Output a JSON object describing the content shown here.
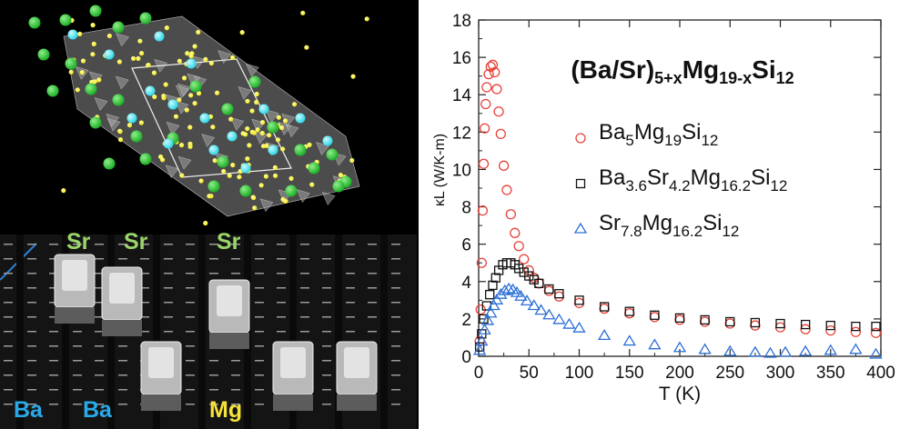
{
  "element_labels": {
    "top": [
      "Sr",
      "Sr",
      "Sr"
    ],
    "bottom": [
      "Ba",
      "Ba",
      "Mg"
    ]
  },
  "colors": {
    "sr_label": "#9ad46a",
    "ba_label": "#2aa9e8",
    "mg_label": "#f5e23a",
    "atom_green": "#1fae28",
    "atom_cyan": "#2fd6e6",
    "atom_yellow": "#f2ea1c",
    "polyhedra": "#8a8a8a",
    "series_ba": "#e8433c",
    "series_basr": "#111111",
    "series_sr": "#2b6fd6"
  },
  "chart_data": {
    "type": "scatter",
    "title": "(Ba/Sr)5+xMg19-xSi12",
    "xlabel": "T (K)",
    "ylabel": "κL (W/K-m)",
    "xlim": [
      0,
      400
    ],
    "ylim": [
      0,
      18
    ],
    "xticks": [
      "0",
      "50",
      "100",
      "150",
      "200",
      "250",
      "300",
      "350",
      "400"
    ],
    "yticks": [
      "0",
      "2",
      "4",
      "6",
      "8",
      "10",
      "12",
      "14",
      "16",
      "18"
    ],
    "series": [
      {
        "name": "Ba5Mg19Si12",
        "marker": "circle",
        "color": "#e8433c",
        "points": [
          [
            1,
            0.8
          ],
          [
            2,
            2.5
          ],
          [
            3,
            5
          ],
          [
            4,
            7.8
          ],
          [
            5,
            10.3
          ],
          [
            6,
            12.2
          ],
          [
            7,
            13.5
          ],
          [
            8,
            14.4
          ],
          [
            10,
            15.1
          ],
          [
            12,
            15.5
          ],
          [
            14,
            15.6
          ],
          [
            16,
            15.2
          ],
          [
            18,
            14.3
          ],
          [
            20,
            13.1
          ],
          [
            22,
            11.9
          ],
          [
            25,
            10.2
          ],
          [
            28,
            8.9
          ],
          [
            32,
            7.6
          ],
          [
            36,
            6.6
          ],
          [
            40,
            5.9
          ],
          [
            45,
            5.2
          ],
          [
            50,
            4.6
          ],
          [
            55,
            4.2
          ],
          [
            60,
            3.9
          ],
          [
            70,
            3.5
          ],
          [
            80,
            3.2
          ],
          [
            100,
            2.85
          ],
          [
            125,
            2.55
          ],
          [
            150,
            2.3
          ],
          [
            175,
            2.1
          ],
          [
            200,
            1.95
          ],
          [
            225,
            1.85
          ],
          [
            250,
            1.75
          ],
          [
            275,
            1.65
          ],
          [
            300,
            1.55
          ],
          [
            325,
            1.45
          ],
          [
            350,
            1.38
          ],
          [
            375,
            1.3
          ],
          [
            395,
            1.25
          ]
        ],
        "legend_parts": [
          [
            "Ba",
            false
          ],
          [
            "5",
            true
          ],
          [
            "Mg",
            false
          ],
          [
            "19",
            true
          ],
          [
            "Si",
            false
          ],
          [
            "12",
            true
          ]
        ]
      },
      {
        "name": "Ba3.6Sr4.2Mg16.2Si12",
        "marker": "square",
        "color": "#111111",
        "points": [
          [
            1,
            0.5
          ],
          [
            3,
            1.2
          ],
          [
            5,
            2.0
          ],
          [
            8,
            2.7
          ],
          [
            11,
            3.3
          ],
          [
            14,
            3.8
          ],
          [
            17,
            4.2
          ],
          [
            20,
            4.6
          ],
          [
            24,
            4.9
          ],
          [
            28,
            5.0
          ],
          [
            32,
            5.0
          ],
          [
            36,
            4.9
          ],
          [
            40,
            4.7
          ],
          [
            45,
            4.5
          ],
          [
            50,
            4.3
          ],
          [
            55,
            4.1
          ],
          [
            60,
            3.9
          ],
          [
            70,
            3.6
          ],
          [
            80,
            3.35
          ],
          [
            100,
            3.0
          ],
          [
            125,
            2.65
          ],
          [
            150,
            2.4
          ],
          [
            175,
            2.2
          ],
          [
            200,
            2.05
          ],
          [
            225,
            1.95
          ],
          [
            250,
            1.85
          ],
          [
            275,
            1.8
          ],
          [
            300,
            1.75
          ],
          [
            325,
            1.7
          ],
          [
            350,
            1.65
          ],
          [
            375,
            1.6
          ],
          [
            395,
            1.6
          ]
        ],
        "legend_parts": [
          [
            "Ba",
            false
          ],
          [
            "3.6",
            true
          ],
          [
            "Sr",
            false
          ],
          [
            "4.2",
            true
          ],
          [
            "Mg",
            false
          ],
          [
            "16.2",
            true
          ],
          [
            "Si",
            false
          ],
          [
            "12",
            true
          ]
        ]
      },
      {
        "name": "Sr7.8Mg16.2Si12",
        "marker": "triangle",
        "color": "#2b6fd6",
        "points": [
          [
            1,
            0.3
          ],
          [
            3,
            0.8
          ],
          [
            6,
            1.4
          ],
          [
            9,
            1.9
          ],
          [
            12,
            2.3
          ],
          [
            15,
            2.7
          ],
          [
            18,
            3.0
          ],
          [
            22,
            3.3
          ],
          [
            26,
            3.5
          ],
          [
            30,
            3.6
          ],
          [
            34,
            3.55
          ],
          [
            38,
            3.4
          ],
          [
            42,
            3.2
          ],
          [
            48,
            2.95
          ],
          [
            55,
            2.7
          ],
          [
            62,
            2.45
          ],
          [
            70,
            2.2
          ],
          [
            80,
            1.95
          ],
          [
            90,
            1.7
          ],
          [
            100,
            1.5
          ],
          [
            125,
            1.1
          ],
          [
            150,
            0.8
          ],
          [
            175,
            0.6
          ],
          [
            200,
            0.45
          ],
          [
            225,
            0.35
          ],
          [
            250,
            0.25
          ],
          [
            275,
            0.2
          ],
          [
            290,
            0.15
          ],
          [
            305,
            0.2
          ],
          [
            325,
            0.25
          ],
          [
            350,
            0.3
          ],
          [
            375,
            0.35
          ],
          [
            395,
            0.1
          ]
        ],
        "legend_parts": [
          [
            "Sr",
            false
          ],
          [
            "7.8",
            true
          ],
          [
            "Mg",
            false
          ],
          [
            "16.2",
            true
          ],
          [
            "Si",
            false
          ],
          [
            "12",
            true
          ]
        ]
      }
    ]
  }
}
